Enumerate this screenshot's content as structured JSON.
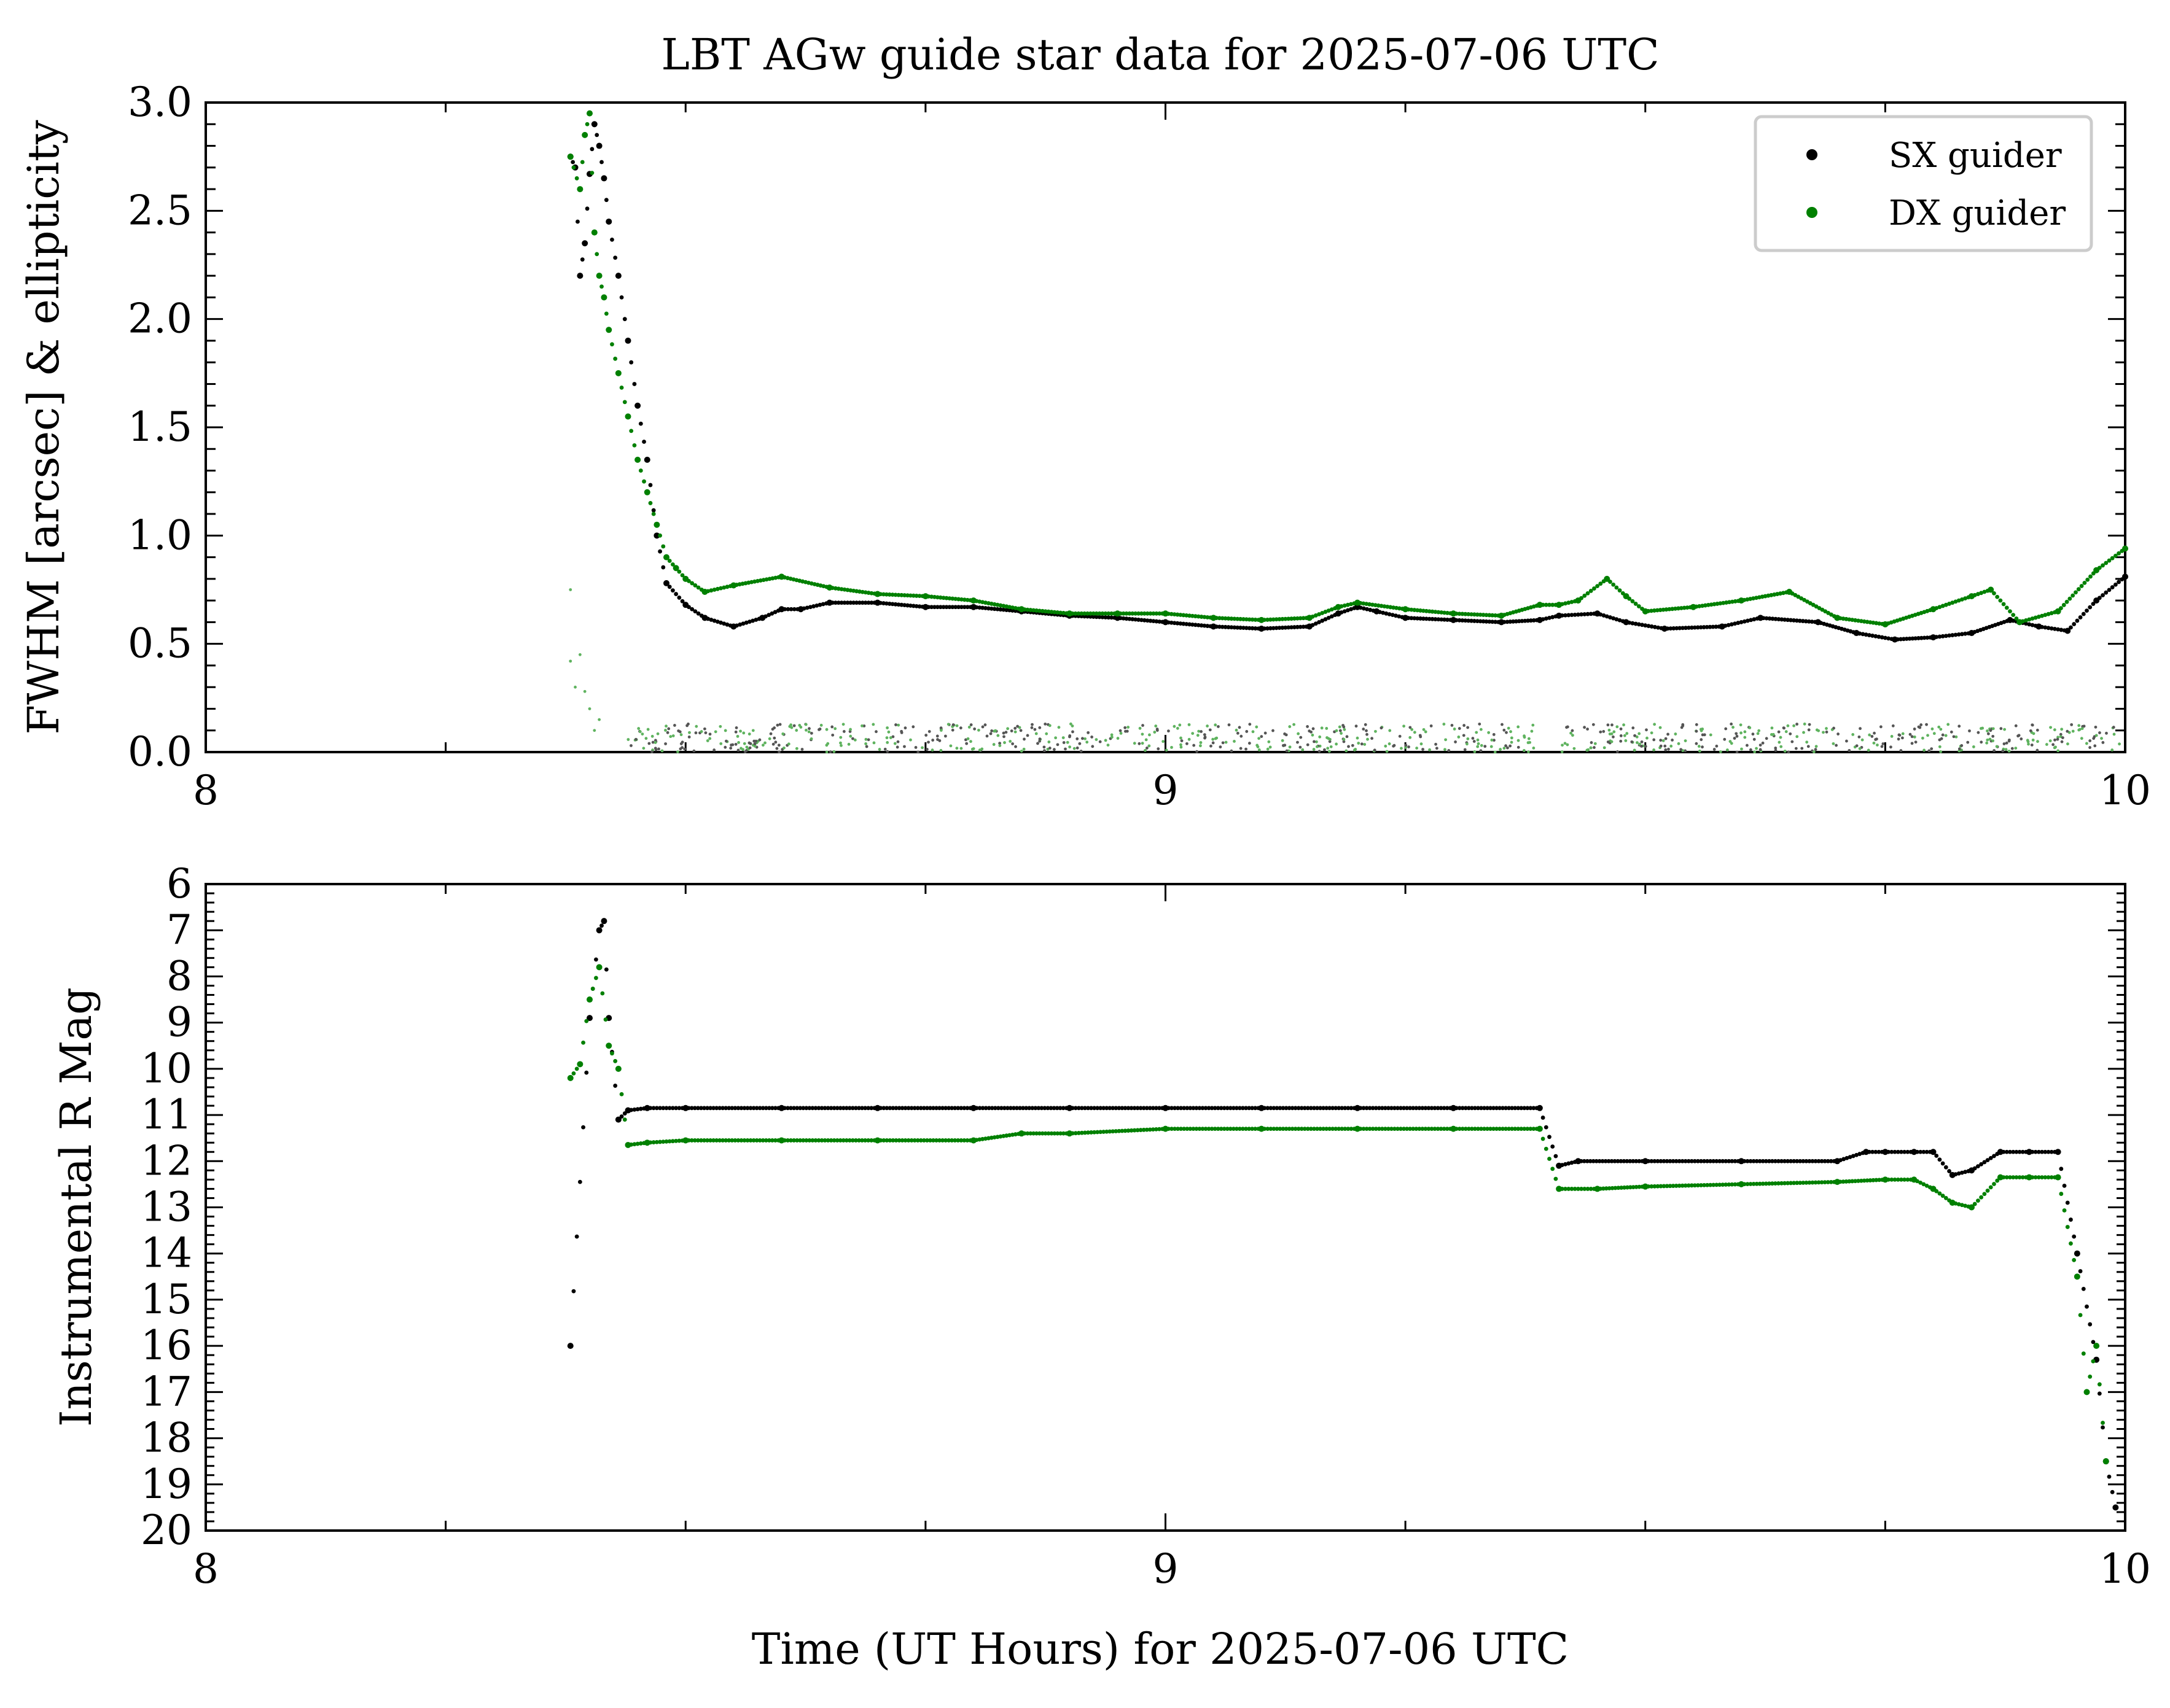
{
  "figure": {
    "title": "LBT AGw guide star data for 2025-07-06 UTC",
    "xlabel": "Time (UT Hours) for 2025-07-06 UTC"
  },
  "colors": {
    "sx": "#000000",
    "dx": "#008000",
    "dx_light": "#5fb35f",
    "axis": "#000000"
  },
  "legend": [
    {
      "label": "SX guider",
      "color": "#000000"
    },
    {
      "label": "DX guider",
      "color": "#008000"
    }
  ],
  "chart_data": [
    {
      "type": "scatter",
      "ylabel": "FWHM [arcsec] & ellipticity",
      "xlim": [
        8,
        10
      ],
      "ylim": [
        0,
        3
      ],
      "x_major_ticks": [
        "8",
        "9",
        "10"
      ],
      "y_major_ticks": [
        "0.0",
        "0.5",
        "1.0",
        "1.5",
        "2.0",
        "2.5",
        "3.0"
      ],
      "grid": false,
      "legend_position": "top-right",
      "series": [
        {
          "name": "SX guider",
          "kind": "fwhm",
          "x": [
            8.38,
            8.385,
            8.39,
            8.395,
            8.4,
            8.405,
            8.41,
            8.415,
            8.42,
            8.43,
            8.44,
            8.45,
            8.46,
            8.47,
            8.48,
            8.5,
            8.52,
            8.55,
            8.58,
            8.6,
            8.62,
            8.65,
            8.7,
            8.75,
            8.8,
            8.85,
            8.9,
            8.95,
            9.0,
            9.05,
            9.1,
            9.15,
            9.18,
            9.2,
            9.22,
            9.25,
            9.3,
            9.35,
            9.39,
            9.41,
            9.45,
            9.48,
            9.52,
            9.58,
            9.62,
            9.68,
            9.72,
            9.76,
            9.8,
            9.84,
            9.88,
            9.91,
            9.94,
            9.97,
            10.0
          ],
          "y": [
            2.75,
            2.7,
            2.2,
            2.35,
            2.67,
            2.9,
            2.8,
            2.65,
            2.45,
            2.2,
            1.9,
            1.6,
            1.35,
            1.0,
            0.78,
            0.68,
            0.62,
            0.58,
            0.62,
            0.66,
            0.66,
            0.69,
            0.69,
            0.67,
            0.67,
            0.65,
            0.63,
            0.62,
            0.6,
            0.58,
            0.57,
            0.58,
            0.64,
            0.67,
            0.65,
            0.62,
            0.61,
            0.6,
            0.61,
            0.63,
            0.64,
            0.6,
            0.57,
            0.58,
            0.62,
            0.6,
            0.55,
            0.52,
            0.53,
            0.55,
            0.61,
            0.58,
            0.56,
            0.7,
            0.81
          ]
        },
        {
          "name": "DX guider",
          "kind": "fwhm",
          "x": [
            8.38,
            8.39,
            8.395,
            8.4,
            8.405,
            8.41,
            8.415,
            8.42,
            8.43,
            8.44,
            8.45,
            8.46,
            8.47,
            8.48,
            8.49,
            8.5,
            8.52,
            8.55,
            8.6,
            8.65,
            8.7,
            8.75,
            8.8,
            8.85,
            8.9,
            8.95,
            9.0,
            9.05,
            9.1,
            9.15,
            9.18,
            9.2,
            9.25,
            9.3,
            9.35,
            9.39,
            9.41,
            9.43,
            9.46,
            9.48,
            9.5,
            9.55,
            9.6,
            9.65,
            9.7,
            9.75,
            9.8,
            9.84,
            9.86,
            9.89,
            9.93,
            9.97,
            10.0
          ],
          "y": [
            2.75,
            2.6,
            2.85,
            2.95,
            2.4,
            2.2,
            2.1,
            1.95,
            1.75,
            1.55,
            1.35,
            1.2,
            1.05,
            0.9,
            0.85,
            0.8,
            0.74,
            0.77,
            0.81,
            0.76,
            0.73,
            0.72,
            0.7,
            0.66,
            0.64,
            0.64,
            0.64,
            0.62,
            0.61,
            0.62,
            0.67,
            0.69,
            0.66,
            0.64,
            0.63,
            0.68,
            0.68,
            0.7,
            0.8,
            0.72,
            0.65,
            0.67,
            0.7,
            0.74,
            0.62,
            0.59,
            0.66,
            0.72,
            0.75,
            0.6,
            0.65,
            0.84,
            0.94
          ]
        }
      ],
      "ellipticity_note": "scattered points 0.0–0.15 for both guiders from 8.44 to 10.0"
    },
    {
      "type": "scatter",
      "ylabel": "Instrumental R Mag",
      "xlim": [
        8,
        10
      ],
      "ylim": [
        20,
        6
      ],
      "x_major_ticks": [
        "8",
        "9",
        "10"
      ],
      "y_major_ticks": [
        "6",
        "7",
        "8",
        "9",
        "10",
        "11",
        "12",
        "13",
        "14",
        "15",
        "16",
        "17",
        "18",
        "19",
        "20"
      ],
      "grid": false,
      "series": [
        {
          "name": "SX guider",
          "x": [
            8.38,
            8.4,
            8.41,
            8.415,
            8.42,
            8.43,
            8.44,
            8.46,
            8.5,
            8.6,
            8.7,
            8.8,
            8.9,
            9.0,
            9.1,
            9.2,
            9.3,
            9.39,
            9.41,
            9.43,
            9.5,
            9.6,
            9.7,
            9.73,
            9.75,
            9.78,
            9.8,
            9.82,
            9.84,
            9.87,
            9.9,
            9.93,
            9.95,
            9.97,
            9.98,
            9.99
          ],
          "y": [
            16.0,
            8.9,
            7.0,
            6.8,
            8.9,
            11.1,
            10.9,
            10.85,
            10.85,
            10.85,
            10.85,
            10.85,
            10.85,
            10.85,
            10.85,
            10.85,
            10.85,
            10.85,
            12.1,
            12.0,
            12.0,
            12.0,
            12.0,
            11.8,
            11.8,
            11.8,
            11.8,
            12.3,
            12.2,
            11.8,
            11.8,
            11.8,
            14.0,
            16.3,
            18.5,
            19.5
          ]
        },
        {
          "name": "DX guider",
          "x": [
            8.38,
            8.39,
            8.4,
            8.41,
            8.42,
            8.43,
            8.44,
            8.46,
            8.5,
            8.6,
            8.7,
            8.8,
            8.85,
            8.9,
            9.0,
            9.1,
            9.2,
            9.3,
            9.39,
            9.41,
            9.45,
            9.5,
            9.6,
            9.7,
            9.75,
            9.78,
            9.8,
            9.82,
            9.84,
            9.87,
            9.9,
            9.93,
            9.95,
            9.96,
            9.97,
            9.98
          ],
          "y": [
            10.2,
            9.9,
            8.5,
            7.8,
            9.5,
            10.0,
            11.65,
            11.6,
            11.55,
            11.55,
            11.55,
            11.55,
            11.4,
            11.4,
            11.3,
            11.3,
            11.3,
            11.3,
            11.3,
            12.6,
            12.6,
            12.55,
            12.5,
            12.45,
            12.4,
            12.4,
            12.6,
            12.9,
            13.0,
            12.35,
            12.35,
            12.35,
            14.5,
            17.0,
            16.0,
            18.5
          ]
        }
      ]
    }
  ]
}
